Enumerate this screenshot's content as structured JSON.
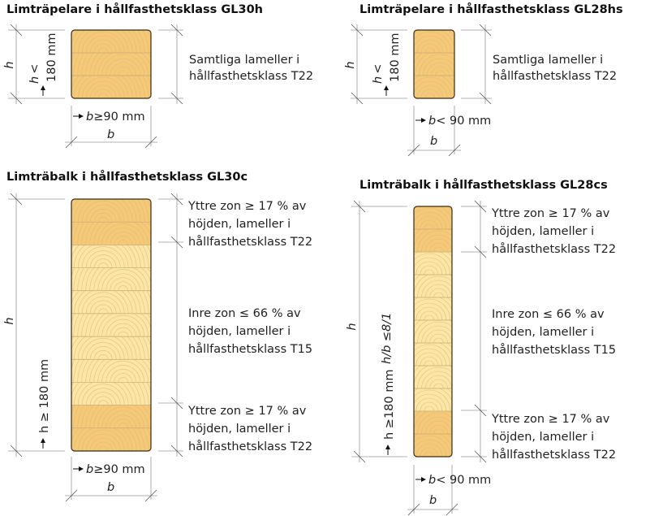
{
  "colors": {
    "outer_zone": "#f6c979",
    "inner_zone": "#fbe6a6",
    "outline": "#3a2a10"
  },
  "panels": [
    {
      "title": "Limträpelare i hållfasthetsklass GL30h",
      "h_label": "h",
      "h_cond_var": "h",
      "h_cond_op": "<",
      "h_cond_val": "180 mm",
      "b_cond_var": "b",
      "b_cond_rest": "≥90 mm",
      "b_label": "b",
      "zones": [
        {
          "lines": [
            "Samtliga lameller i",
            "hållfasthetsklass T22"
          ]
        }
      ]
    },
    {
      "title": "Limträpelare i hållfasthetsklass GL28hs",
      "h_label": "h",
      "h_cond_var": "h",
      "h_cond_op": "<",
      "h_cond_val": "180 mm",
      "b_cond_var": "b",
      "b_cond_rest": "< 90 mm",
      "b_label": "b",
      "zones": [
        {
          "lines": [
            "Samtliga lameller i",
            "hållfasthetsklass T22"
          ]
        }
      ]
    },
    {
      "title": "Limträbalk i hållfasthetsklass GL30c",
      "h_label": "h",
      "h_cond": "h ≥ 180 mm",
      "b_cond_var": "b",
      "b_cond_rest": "≥90 mm",
      "b_label": "b",
      "zones": [
        {
          "lines": [
            "Yttre zon ≥ 17 % av",
            "höjden, lameller i",
            "hållfasthetsklass T22"
          ]
        },
        {
          "lines": [
            "Inre zon ≤ 66 % av",
            "höjden, lameller i",
            "hållfasthetsklass T15"
          ]
        },
        {
          "lines": [
            "Yttre zon ≥ 17 % av",
            "höjden, lameller i",
            "hållfasthetsklass T22"
          ]
        }
      ]
    },
    {
      "title": "Limträbalk i hållfasthetsklass GL28cs",
      "h_label": "h",
      "h_cond": "h ≥180 mm",
      "hb_cond": "h/b ≤8/1",
      "b_cond_var": "b",
      "b_cond_rest": "< 90 mm",
      "b_label": "b",
      "zones": [
        {
          "lines": [
            "Yttre zon ≥ 17 % av",
            "höjden, lameller i",
            "hållfasthetsklass T22"
          ]
        },
        {
          "lines": [
            "Inre zon ≤ 66 % av",
            "höjden, lameller i",
            "hållfasthetsklass T15"
          ]
        },
        {
          "lines": [
            "Yttre zon ≥ 17 % av",
            "höjden, lameller i",
            "hållfasthetsklass T22"
          ]
        }
      ]
    }
  ]
}
